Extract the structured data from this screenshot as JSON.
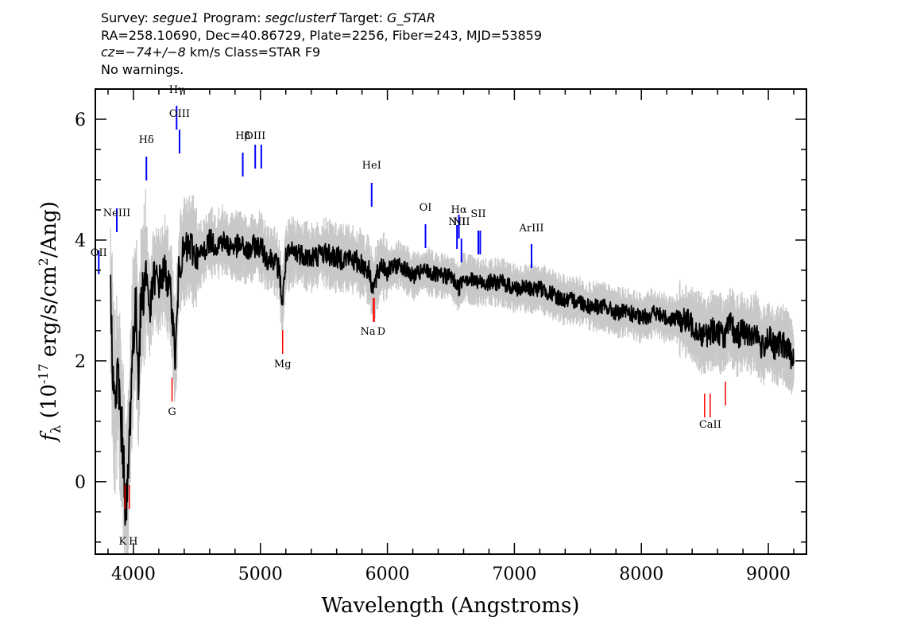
{
  "header": {
    "line1": {
      "survey_label": "Survey:",
      "survey": "segue1",
      "program_label": "Program:",
      "program": "segclusterf",
      "target_label": "Target:",
      "target": "G_STAR"
    },
    "line2": "RA=258.10690, Dec=40.86729, Plate=2256, Fiber=243, MJD=53859",
    "line3": {
      "cz": "cz=−74+/−8",
      "rest": "km/s Class=STAR F9"
    },
    "line4": "No warnings."
  },
  "colors": {
    "flux": "#000000",
    "error_band": "#c8c8c8",
    "emission_line": "#0000ff",
    "absorption_line": "#ff0000"
  },
  "chart_data": {
    "type": "line",
    "xlabel": "Wavelength (Angstroms)",
    "ylabel": "f_λ (10^-17 erg/s/cm^2/Ang)",
    "xlim": [
      3700,
      9300
    ],
    "ylim": [
      -1.2,
      6.5
    ],
    "xticks": [
      4000,
      5000,
      6000,
      7000,
      8000,
      9000
    ],
    "yticks": [
      0,
      2,
      4,
      6
    ],
    "grid": false,
    "series": [
      {
        "role": "flux",
        "x": [
          3820,
          3850,
          3880,
          3900,
          3920,
          3935,
          3950,
          3965,
          3980,
          4000,
          4020,
          4040,
          4060,
          4080,
          4100,
          4130,
          4160,
          4200,
          4250,
          4300,
          4330,
          4360,
          4400,
          4450,
          4500,
          4550,
          4600,
          4650,
          4700,
          4750,
          4800,
          4850,
          4900,
          4950,
          5000,
          5050,
          5100,
          5150,
          5172,
          5200,
          5250,
          5300,
          5400,
          5500,
          5600,
          5700,
          5800,
          5850,
          5890,
          5950,
          6000,
          6100,
          6200,
          6300,
          6400,
          6500,
          6563,
          6600,
          6700,
          6800,
          6900,
          7000,
          7100,
          7200,
          7300,
          7400,
          7500,
          7600,
          7700,
          7800,
          7900,
          8000,
          8100,
          8200,
          8300,
          8400,
          8450,
          8500,
          8550,
          8600,
          8650,
          8700,
          8750,
          8800,
          8850,
          8900,
          8950,
          9000,
          9050,
          9100,
          9150,
          9200
        ],
        "y": [
          3.0,
          1.2,
          1.8,
          1.0,
          0.5,
          -0.3,
          -0.4,
          0.5,
          1.5,
          2.5,
          2.8,
          1.8,
          3.0,
          3.2,
          3.5,
          2.8,
          3.4,
          3.3,
          3.5,
          3.0,
          2.0,
          3.6,
          3.8,
          3.9,
          3.7,
          3.8,
          4.0,
          3.9,
          4.0,
          3.9,
          3.9,
          3.9,
          3.8,
          3.9,
          3.9,
          3.7,
          3.7,
          3.5,
          2.9,
          3.7,
          3.8,
          3.8,
          3.7,
          3.8,
          3.7,
          3.7,
          3.6,
          3.5,
          3.2,
          3.6,
          3.5,
          3.6,
          3.4,
          3.5,
          3.4,
          3.4,
          3.2,
          3.4,
          3.3,
          3.3,
          3.3,
          3.2,
          3.2,
          3.2,
          3.1,
          3.0,
          3.0,
          2.9,
          2.9,
          2.8,
          2.8,
          2.7,
          2.8,
          2.7,
          2.7,
          2.6,
          2.5,
          2.4,
          2.5,
          2.5,
          2.4,
          2.6,
          2.4,
          2.5,
          2.4,
          2.5,
          2.2,
          2.4,
          2.2,
          2.3,
          2.2,
          2.0
        ]
      }
    ],
    "emission_lines": [
      {
        "label": "OII",
        "wavelength": 3727
      },
      {
        "label": "NeIII",
        "wavelength": 3869
      },
      {
        "label": "Hδ",
        "wavelength": 4102
      },
      {
        "label": "Hγ",
        "wavelength": 4340
      },
      {
        "label": "OIII",
        "wavelength": 4363
      },
      {
        "label": "Hβ",
        "wavelength": 4861
      },
      {
        "label": "OIII",
        "wavelength": 4959
      },
      {
        "label": "OIII",
        "wavelength": 5007
      },
      {
        "label": "HeI",
        "wavelength": 5876
      },
      {
        "label": "OI",
        "wavelength": 6300
      },
      {
        "label": "NII",
        "wavelength": 6548
      },
      {
        "label": "Hα",
        "wavelength": 6563
      },
      {
        "label": "NII",
        "wavelength": 6583
      },
      {
        "label": "SII",
        "wavelength": 6716
      },
      {
        "label": "SII",
        "wavelength": 6731
      },
      {
        "label": "ArIII",
        "wavelength": 7135
      }
    ],
    "absorption_lines": [
      {
        "label": "K",
        "wavelength": 3934
      },
      {
        "label": "H",
        "wavelength": 3968
      },
      {
        "label": "G",
        "wavelength": 4304
      },
      {
        "label": "Mg",
        "wavelength": 5175
      },
      {
        "label": "Na",
        "wavelength": 5890
      },
      {
        "label": "D",
        "wavelength": 5896
      },
      {
        "label": "CaII",
        "wavelength": 8498
      },
      {
        "label": "CaII",
        "wavelength": 8542
      },
      {
        "label": "CaII",
        "wavelength": 8662
      }
    ]
  }
}
